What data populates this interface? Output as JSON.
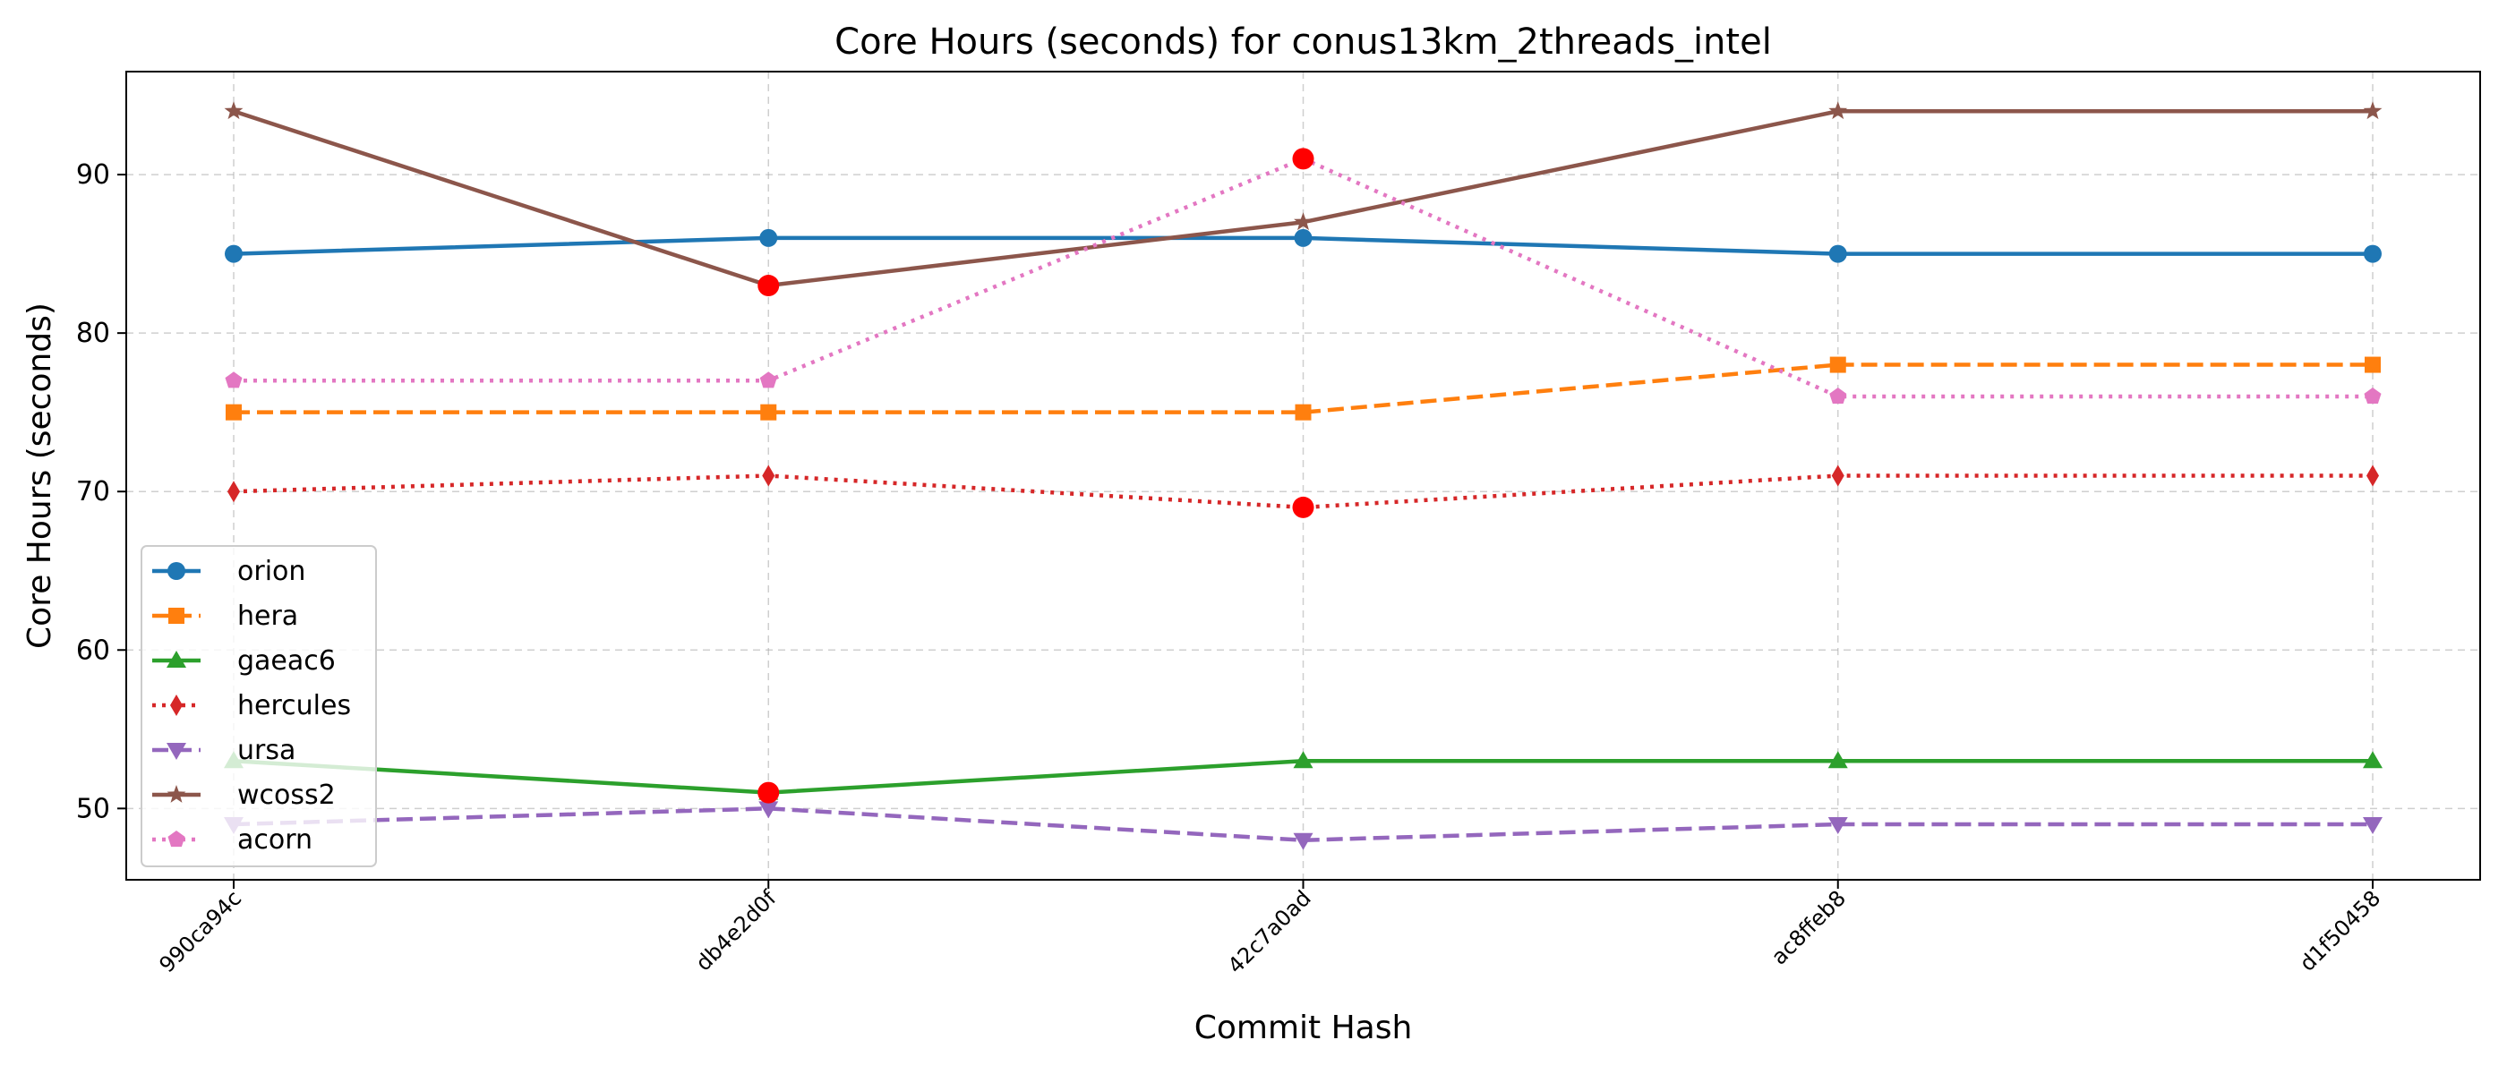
{
  "chart_data": {
    "type": "line",
    "title": "Core Hours (seconds) for conus13km_2threads_intel",
    "xlabel": "Commit Hash",
    "ylabel": "Core Hours (seconds)",
    "categories": [
      "990ca94c",
      "db4e2d0f",
      "42c7a0ad",
      "ac8ffeb8",
      "d1f50458"
    ],
    "ylim": [
      45.5,
      96.5
    ],
    "yticks": [
      50,
      60,
      70,
      80,
      90
    ],
    "grid": true,
    "legend_position": "lower-left",
    "series": [
      {
        "name": "orion",
        "values": [
          85,
          86,
          86,
          85,
          85
        ],
        "color": "#1f77b4",
        "marker": "circle",
        "linestyle": "solid"
      },
      {
        "name": "hera",
        "values": [
          75,
          75,
          75,
          78,
          78
        ],
        "color": "#ff7f0e",
        "marker": "square",
        "linestyle": "dashed"
      },
      {
        "name": "gaeac6",
        "values": [
          53,
          51,
          53,
          53,
          53
        ],
        "color": "#2ca02c",
        "marker": "triangle-up",
        "linestyle": "solid"
      },
      {
        "name": "hercules",
        "values": [
          70,
          71,
          69,
          71,
          71
        ],
        "color": "#d62728",
        "marker": "thin-diamond",
        "linestyle": "dotted"
      },
      {
        "name": "ursa",
        "values": [
          49,
          50,
          48,
          49,
          49
        ],
        "color": "#9467bd",
        "marker": "triangle-down",
        "linestyle": "dashed"
      },
      {
        "name": "wcoss2",
        "values": [
          94,
          83,
          87,
          94,
          94
        ],
        "color": "#8c564b",
        "marker": "star",
        "linestyle": "solid"
      },
      {
        "name": "acorn",
        "values": [
          77,
          77,
          91,
          76,
          76
        ],
        "color": "#e377c2",
        "marker": "pentagon",
        "linestyle": "dotted"
      }
    ],
    "highlights": [
      {
        "series": "wcoss2",
        "category": "db4e2d0f",
        "value": 83
      },
      {
        "series": "gaeac6",
        "category": "db4e2d0f",
        "value": 51
      },
      {
        "series": "acorn",
        "category": "42c7a0ad",
        "value": 91
      },
      {
        "series": "hercules",
        "category": "42c7a0ad",
        "value": 69
      }
    ],
    "highlight_color": "#ff0000"
  }
}
